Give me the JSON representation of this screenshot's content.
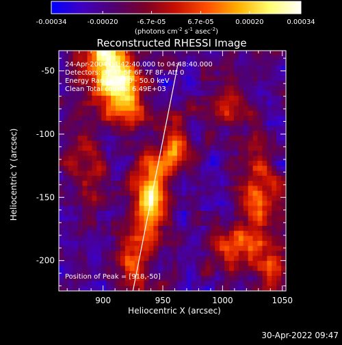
{
  "chart_data": {
    "type": "heatmap",
    "title": "Reconstructed RHESSI Image",
    "xlabel": "Heliocentric X (arcsec)",
    "ylabel": "Heliocentric Y (arcsec)",
    "xlim": [
      863,
      1053
    ],
    "ylim": [
      -224,
      -34
    ],
    "xticks": [
      900,
      950,
      1000,
      1050
    ],
    "yticks": [
      -50,
      -100,
      -150,
      -200
    ],
    "colorbar": {
      "min": -0.00034,
      "max": 0.00034,
      "ticks": [
        -0.00034,
        -0.0002,
        -6.7e-05,
        6.7e-05,
        0.0002,
        0.00034
      ],
      "tick_labels": [
        "-0.00034",
        "-0.00020",
        "-6.7e-05",
        "6.7e-05",
        "0.00020",
        "0.00034"
      ],
      "unit_main": "(photons cm",
      "unit_exp1": "-2",
      "unit_mid": " s",
      "unit_exp2": "-1",
      "unit_mid2": " asec",
      "unit_exp3": "-2",
      "unit_end": ")",
      "colormap": [
        "#0000ff",
        "#4000c0",
        "#500070",
        "#7a0028",
        "#c81000",
        "#ff5000",
        "#ffb000",
        "#ffff70",
        "#ffffff"
      ]
    },
    "annotations": [
      "24-Apr-2004 04:42:40.000 to 04:48:40.000",
      "Detectors: 3F 4F 5F 6F 7F 8F, Att 0",
      "Energy Range: 20.0 - 50.0 keV",
      "Clean     Total counts: 6.49E+03"
    ],
    "peak_label": "Position of Peak = [918,-50]",
    "limb_line": [
      [
        925,
        -224
      ],
      [
        963,
        -43
      ]
    ],
    "grid": false,
    "field_sources": [
      {
        "x": 905,
        "y": -40,
        "sx": 14,
        "sy": 22,
        "a": 1.0
      },
      {
        "x": 918,
        "y": -72,
        "sx": 12,
        "sy": 16,
        "a": 0.7
      },
      {
        "x": 940,
        "y": -150,
        "sx": 9,
        "sy": 22,
        "a": 0.95
      },
      {
        "x": 960,
        "y": -112,
        "sx": 9,
        "sy": 14,
        "a": 0.6
      },
      {
        "x": 925,
        "y": -200,
        "sx": 10,
        "sy": 18,
        "a": 0.5
      },
      {
        "x": 1030,
        "y": -150,
        "sx": 12,
        "sy": 28,
        "a": 0.55
      },
      {
        "x": 1010,
        "y": -190,
        "sx": 16,
        "sy": 12,
        "a": 0.45
      },
      {
        "x": 885,
        "y": -125,
        "sx": 14,
        "sy": 18,
        "a": 0.3
      },
      {
        "x": 1000,
        "y": -80,
        "sx": 14,
        "sy": 10,
        "a": 0.35
      },
      {
        "x": 1045,
        "y": -205,
        "sx": 8,
        "sy": 10,
        "a": 0.4
      }
    ]
  },
  "footer": {
    "timestamp": "30-Apr-2022 09:47"
  }
}
